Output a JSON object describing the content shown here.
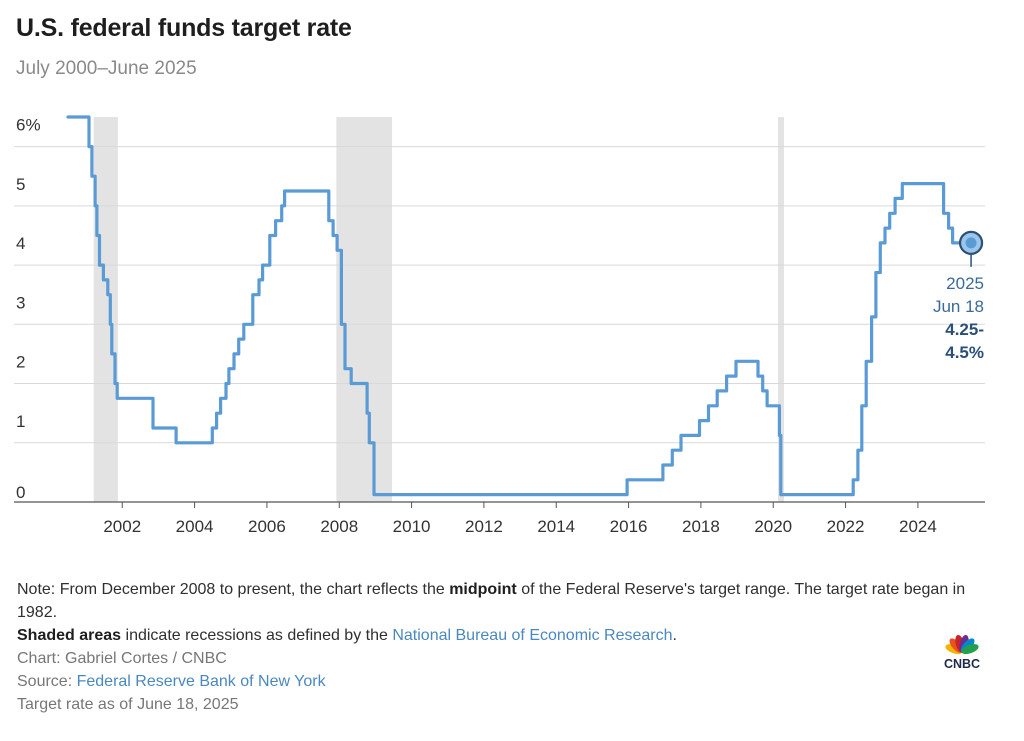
{
  "header": {
    "title": "U.S. federal funds target rate",
    "subtitle": "July 2000–June 2025"
  },
  "chart_data": {
    "type": "line",
    "title": "U.S. federal funds target rate",
    "subtitle": "July 2000–June 2025",
    "xlabel": "",
    "ylabel": "",
    "xlim": [
      2000.5,
      2025.8
    ],
    "ylim": [
      0,
      6.5
    ],
    "y_ticks": [
      0,
      1,
      2,
      3,
      4,
      5,
      6
    ],
    "y_tick_labels": [
      "0",
      "1",
      "2",
      "3",
      "4",
      "5",
      "6%"
    ],
    "x_ticks": [
      2002,
      2004,
      2006,
      2008,
      2010,
      2012,
      2014,
      2016,
      2018,
      2020,
      2022,
      2024
    ],
    "x_tick_labels": [
      "2002",
      "2004",
      "2006",
      "2008",
      "2010",
      "2012",
      "2014",
      "2016",
      "2018",
      "2020",
      "2022",
      "2024"
    ],
    "grid": true,
    "line_color": "#5b9bd5",
    "recession_color": "#e3e3e3",
    "recessions": [
      {
        "start": 2001.21,
        "end": 2001.88
      },
      {
        "start": 2007.92,
        "end": 2009.46
      },
      {
        "start": 2020.13,
        "end": 2020.29
      }
    ],
    "series": [
      {
        "points": [
          [
            2000.5,
            6.5
          ],
          [
            2001.0,
            6.5
          ],
          [
            2001.08,
            6.0
          ],
          [
            2001.16,
            5.5
          ],
          [
            2001.25,
            5.0
          ],
          [
            2001.3,
            4.5
          ],
          [
            2001.37,
            4.0
          ],
          [
            2001.48,
            3.75
          ],
          [
            2001.6,
            3.5
          ],
          [
            2001.67,
            3.0
          ],
          [
            2001.71,
            2.5
          ],
          [
            2001.8,
            2.0
          ],
          [
            2001.86,
            1.75
          ],
          [
            2002.85,
            1.25
          ],
          [
            2003.49,
            1.0
          ],
          [
            2004.49,
            1.25
          ],
          [
            2004.61,
            1.5
          ],
          [
            2004.72,
            1.75
          ],
          [
            2004.87,
            2.0
          ],
          [
            2004.95,
            2.25
          ],
          [
            2005.09,
            2.5
          ],
          [
            2005.22,
            2.75
          ],
          [
            2005.36,
            3.0
          ],
          [
            2005.61,
            3.5
          ],
          [
            2005.78,
            3.75
          ],
          [
            2005.88,
            4.0
          ],
          [
            2006.08,
            4.5
          ],
          [
            2006.24,
            4.75
          ],
          [
            2006.41,
            5.0
          ],
          [
            2006.49,
            5.25
          ],
          [
            2007.71,
            4.75
          ],
          [
            2007.83,
            4.5
          ],
          [
            2007.94,
            4.25
          ],
          [
            2008.06,
            3.0
          ],
          [
            2008.16,
            2.25
          ],
          [
            2008.33,
            2.0
          ],
          [
            2008.77,
            1.5
          ],
          [
            2008.83,
            1.0
          ],
          [
            2008.96,
            0.125
          ],
          [
            2015.96,
            0.375
          ],
          [
            2016.95,
            0.625
          ],
          [
            2017.21,
            0.875
          ],
          [
            2017.45,
            1.125
          ],
          [
            2017.96,
            1.375
          ],
          [
            2018.21,
            1.625
          ],
          [
            2018.45,
            1.875
          ],
          [
            2018.71,
            2.125
          ],
          [
            2018.97,
            2.375
          ],
          [
            2019.58,
            2.125
          ],
          [
            2019.71,
            1.875
          ],
          [
            2019.83,
            1.625
          ],
          [
            2020.17,
            1.125
          ],
          [
            2020.21,
            0.125
          ],
          [
            2022.21,
            0.375
          ],
          [
            2022.34,
            0.875
          ],
          [
            2022.45,
            1.625
          ],
          [
            2022.57,
            2.375
          ],
          [
            2022.72,
            3.125
          ],
          [
            2022.84,
            3.875
          ],
          [
            2022.96,
            4.375
          ],
          [
            2023.09,
            4.625
          ],
          [
            2023.22,
            4.875
          ],
          [
            2023.37,
            5.125
          ],
          [
            2023.57,
            5.375
          ],
          [
            2024.71,
            4.875
          ],
          [
            2024.85,
            4.625
          ],
          [
            2024.96,
            4.375
          ],
          [
            2025.47,
            4.375
          ]
        ]
      }
    ],
    "annotation": {
      "x": 2025.47,
      "y": 4.375,
      "label_lines": [
        "2025",
        "Jun 18",
        "4.25-",
        "4.5%"
      ]
    }
  },
  "notes": {
    "line1_a": "Note: From December 2008 to present, the chart reflects the ",
    "line1_bold": "midpoint",
    "line1_b": " of the Federal Reserve's target range. The target rate began in 1982.",
    "line2_bold": "Shaded areas",
    "line2_a": " indicate recessions as defined by the ",
    "line2_link": "National Bureau of Economic Research",
    "line2_b": ".",
    "credit": "Chart: Gabriel Cortes / CNBC",
    "source_label": "Source: ",
    "source_link": "Federal Reserve Bank of New York",
    "asof": "Target rate as of June 18, 2025"
  },
  "logo": {
    "text": "CNBC",
    "peacock_colors": [
      "#f4b400",
      "#e8541f",
      "#cc2229",
      "#6d2c8f",
      "#0089cf",
      "#22a04b"
    ]
  }
}
